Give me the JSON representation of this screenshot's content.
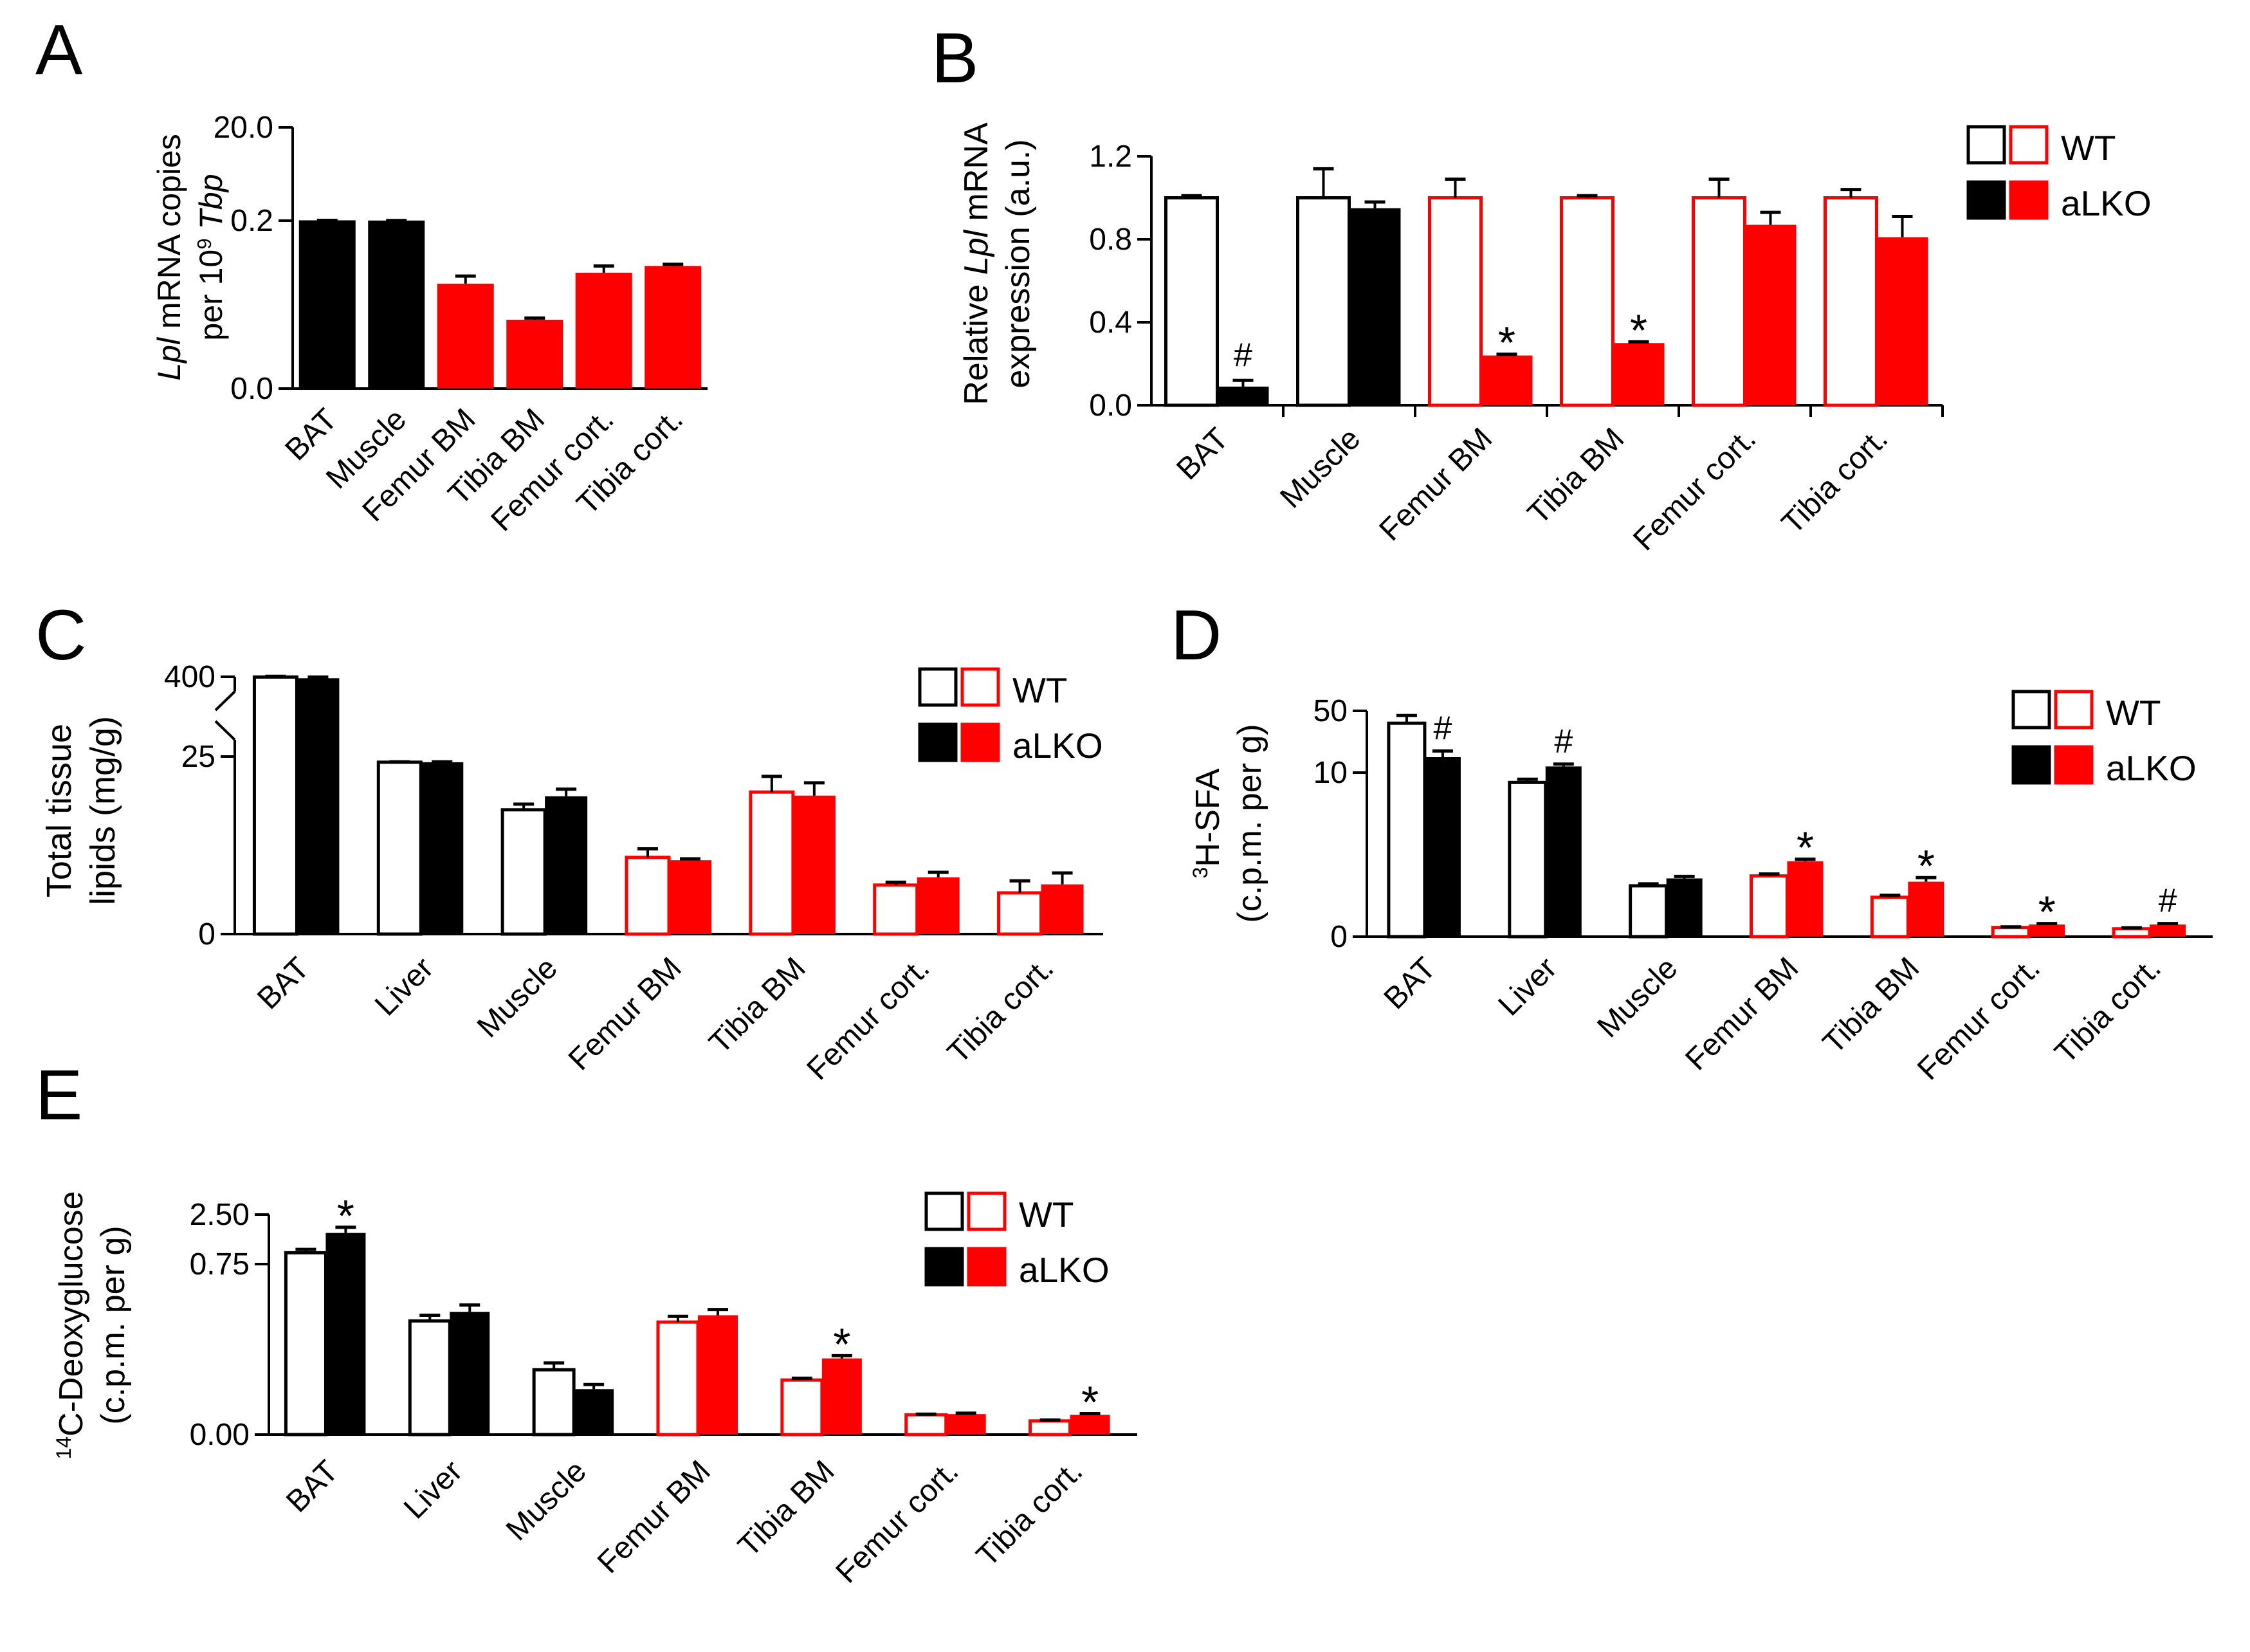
{
  "colors": {
    "black": "#000000",
    "red": "#ff0000",
    "white": "#ffffff"
  },
  "chart_data": [
    {
      "panel": "A",
      "type": "bar",
      "ylabel_parts": [
        "Lpl",
        " mRNA copies"
      ],
      "ylabel_line2_parts": [
        "per 10",
        "9",
        " ",
        "Tbp"
      ],
      "yticks": [
        "20.0",
        "0.2",
        "0.0"
      ],
      "categories": [
        "BAT",
        "Muscle",
        "Femur BM",
        "Tibia BM",
        "Femur cort.",
        "Tibia cort."
      ],
      "series": [
        {
          "values": [
            0.27,
            0.225,
            0.125,
            0.082,
            0.138,
            0.146
          ],
          "errors": [
            0.004,
            0.003,
            0.009,
            0.002,
            0.008,
            0.002
          ],
          "colors": [
            "black",
            "black",
            "red",
            "red",
            "red",
            "red"
          ]
        }
      ]
    },
    {
      "panel": "B",
      "type": "bar",
      "ylabel_parts": [
        "Relative ",
        "Lpl",
        " mRNA"
      ],
      "ylabel_line2": "expression (a.u.)",
      "ylim": [
        0,
        1.2
      ],
      "yticks": [
        "0.0",
        "0.4",
        "0.8",
        "1.2"
      ],
      "categories": [
        "BAT",
        "Muscle",
        "Femur BM",
        "Tibia BM",
        "Femur cort.",
        "Tibia cort."
      ],
      "legend": {
        "wt": "WT",
        "ko": "aLKO"
      },
      "series": [
        {
          "group": "WT",
          "values": [
            1.0,
            1.0,
            1.0,
            1.0,
            1.0,
            1.0
          ],
          "errors": [
            0.01,
            0.14,
            0.09,
            0.01,
            0.09,
            0.04
          ],
          "colors": [
            "black",
            "black",
            "red",
            "red",
            "red",
            "red"
          ],
          "filled": false
        },
        {
          "group": "aLKO",
          "values": [
            0.09,
            0.95,
            0.24,
            0.3,
            0.87,
            0.81
          ],
          "errors": [
            0.03,
            0.03,
            0.006,
            0.006,
            0.06,
            0.1
          ],
          "colors": [
            "black",
            "black",
            "red",
            "red",
            "red",
            "red"
          ],
          "filled": true
        }
      ],
      "annotations": [
        "#",
        "",
        "*",
        "*",
        "",
        ""
      ]
    },
    {
      "panel": "C",
      "type": "bar",
      "ylabel": "Total tissue",
      "ylabel_line2": "lipids (mg/g)",
      "yticks": [
        "400",
        "25",
        "0"
      ],
      "categories": [
        "BAT",
        "Liver",
        "Muscle",
        "Femur BM",
        "Tibia BM",
        "Femur cort.",
        "Tibia cort."
      ],
      "legend": {
        "wt": "WT",
        "ko": "aLKO"
      },
      "series": [
        {
          "group": "WT",
          "values": [
            398,
            24.2,
            17.5,
            10.8,
            20.0,
            6.9,
            5.8
          ],
          "errors": [
            5,
            0.05,
            0.8,
            1.2,
            2.2,
            0.4,
            1.7
          ],
          "colors": [
            "black",
            "black",
            "black",
            "red",
            "red",
            "red",
            "red"
          ],
          "filled": false
        },
        {
          "group": "aLKO",
          "values": [
            390,
            24.2,
            19.4,
            10.4,
            19.5,
            8.0,
            7.0
          ],
          "errors": [
            8,
            0.05,
            1.0,
            0.2,
            1.8,
            0.7,
            1.6
          ],
          "colors": [
            "black",
            "black",
            "black",
            "red",
            "red",
            "red",
            "red"
          ],
          "filled": true
        }
      ]
    },
    {
      "panel": "D",
      "type": "bar",
      "ylabel_parts": [
        "3",
        "H-SFA"
      ],
      "ylabel_line2": "(c.p.m. per g)",
      "yticks": [
        "50",
        "10",
        "0"
      ],
      "categories": [
        "BAT",
        "Liver",
        "Muscle",
        "Femur BM",
        "Tibia BM",
        "Femur cort.",
        "Tibia cort."
      ],
      "legend": {
        "wt": "WT",
        "ko": "aLKO"
      },
      "series": [
        {
          "group": "WT",
          "values": [
            42,
            9.4,
            3.1,
            3.7,
            2.4,
            0.56,
            0.48
          ],
          "errors": [
            5,
            0.2,
            0.12,
            0.12,
            0.12,
            0.04,
            0.06
          ],
          "colors": [
            "black",
            "black",
            "black",
            "red",
            "red",
            "red",
            "red"
          ],
          "filled": false
        },
        {
          "group": "aLKO",
          "values": [
            20,
            14,
            3.55,
            4.6,
            3.35,
            0.74,
            0.74
          ],
          "errors": [
            4,
            1.5,
            0.12,
            0.12,
            0.25,
            0.06,
            0.06
          ],
          "colors": [
            "black",
            "black",
            "black",
            "red",
            "red",
            "red",
            "red"
          ],
          "filled": true
        }
      ],
      "annotations": [
        "#",
        "#",
        "",
        "*",
        "*",
        "*",
        "#"
      ]
    },
    {
      "panel": "E",
      "type": "bar",
      "ylabel_parts": [
        "14",
        "C-Deoxyglucose"
      ],
      "ylabel_line2": "(c.p.m. per g)",
      "yticks": [
        "2.50",
        "0.75",
        "0.00"
      ],
      "categories": [
        "BAT",
        "Liver",
        "Muscle",
        "Femur BM",
        "Tibia BM",
        "Femur cort.",
        "Tibia cort."
      ],
      "legend": {
        "wt": "WT",
        "ko": "aLKO"
      },
      "series": [
        {
          "group": "WT",
          "values": [
            1.15,
            0.5,
            0.285,
            0.495,
            0.24,
            0.087,
            0.06
          ],
          "errors": [
            0.12,
            0.025,
            0.03,
            0.025,
            0.008,
            0.003,
            0.004
          ],
          "colors": [
            "black",
            "black",
            "black",
            "red",
            "red",
            "red",
            "red"
          ],
          "filled": false
        },
        {
          "group": "aLKO",
          "values": [
            1.85,
            0.54,
            0.2,
            0.525,
            0.335,
            0.09,
            0.087
          ],
          "errors": [
            0.2,
            0.03,
            0.02,
            0.025,
            0.012,
            0.004,
            0.005
          ],
          "colors": [
            "black",
            "black",
            "black",
            "red",
            "red",
            "red",
            "red"
          ],
          "filled": true
        }
      ],
      "annotations": [
        "*",
        "",
        "",
        "",
        "*",
        "",
        "*"
      ]
    }
  ]
}
